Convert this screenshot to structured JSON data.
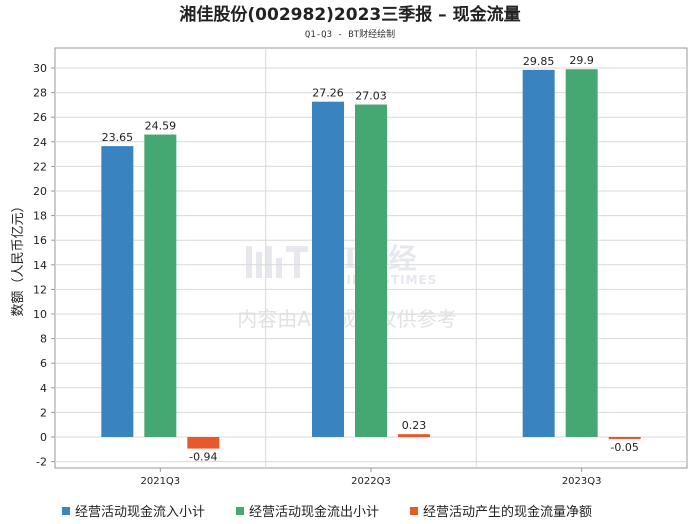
{
  "chart_data": {
    "type": "bar",
    "title": "湘佳股份(002982)2023三季报 – 现金流量",
    "subtitle": "Q1-Q3 - BT财经绘制",
    "ylabel": "数额（人民币亿元）",
    "xlabel": "",
    "ylim": [
      -2,
      31
    ],
    "yticks": [
      -2,
      0,
      2,
      4,
      6,
      8,
      10,
      12,
      14,
      16,
      18,
      20,
      22,
      24,
      26,
      28,
      30
    ],
    "categories": [
      "2021Q3",
      "2022Q3",
      "2023Q3"
    ],
    "series": [
      {
        "name": "经营活动现金流入小计",
        "color": "#3a83c1",
        "values": [
          23.65,
          27.26,
          29.85
        ]
      },
      {
        "name": "经营活动现金流出小计",
        "color": "#45a873",
        "values": [
          24.59,
          27.03,
          29.9
        ]
      },
      {
        "name": "经营活动产生的现金流量净额",
        "color": "#e8582a",
        "values": [
          -0.94,
          0.23,
          -0.05
        ]
      }
    ],
    "grid": true,
    "legend_position": "bottom"
  },
  "watermark": {
    "logo_text": "BT财经",
    "logo_sub": "BUSINESSTIMES",
    "notice": "内容由AI生成，仅供参考"
  }
}
